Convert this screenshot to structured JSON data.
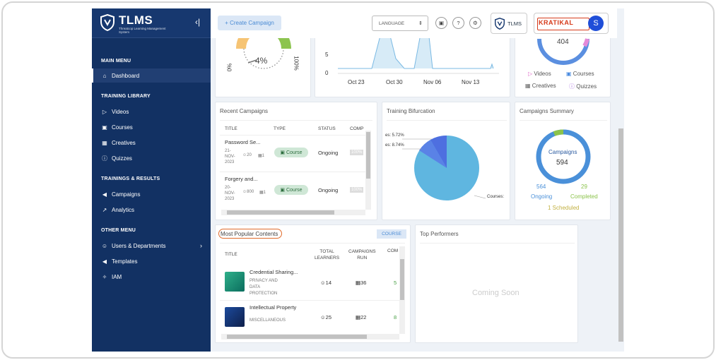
{
  "brand": {
    "name": "TLMS",
    "tagline": "Threatcop Learning Management System",
    "collapse_icon": "collapse-icon"
  },
  "sidebar": {
    "main_menu": "MAIN MENU",
    "dashboard": "Dashboard",
    "training_library": "TRAINING LIBRARY",
    "videos": "Videos",
    "courses": "Courses",
    "creatives": "Creatives",
    "quizzes": "Quizzes",
    "trainings_results": "TRAININGS & RESULTS",
    "campaigns": "Campaigns",
    "analytics": "Analytics",
    "other_menu": "OTHER MENU",
    "users_departments": "Users & Departments",
    "templates": "Templates",
    "iam": "IAM"
  },
  "topbar": {
    "create_campaign": "+ Create Campaign",
    "language": "LANGUAGE",
    "tlms": "TLMS",
    "org_logo": "KRATIKAL",
    "avatar": "S"
  },
  "gauge": {
    "value": "4%",
    "min": "0%",
    "max": "100%",
    "value_fraction": 0.04
  },
  "line_chart": {
    "y_ticks": [
      "5",
      "0"
    ],
    "x_ticks": [
      "Oct 23",
      "Oct 30",
      "Nov 06",
      "Nov 13"
    ]
  },
  "library_summary": {
    "total": "404",
    "videos": "Videos",
    "courses": "Courses",
    "creatives": "Creatives",
    "quizzes": "Quizzes"
  },
  "recent_campaigns": {
    "title": "Recent Campaigns",
    "headers": [
      "TITLE",
      "TYPE",
      "STATUS",
      "COMP"
    ],
    "rows": [
      {
        "name": "Password Se...",
        "date": "21-\nNOV-\n2023",
        "users": "20",
        "modules": "1",
        "type": "Course",
        "status": "Ongoing",
        "comp": "100%"
      },
      {
        "name": "Forgery and...",
        "date": "20-\nNOV-\n2023",
        "users": "800",
        "modules": "1",
        "type": "Course",
        "status": "Ongoing",
        "comp": "100%"
      }
    ]
  },
  "training_bifurcation": {
    "title": "Training Bifurcation",
    "labels": [
      "es: 5.72%",
      "es: 8.74%",
      "Courses:"
    ]
  },
  "campaigns_summary": {
    "title": "Campaigns Summary",
    "center_label": "Campaigns",
    "center_value": "594",
    "ongoing_value": "564",
    "ongoing_label": "Ongoing",
    "completed_value": "29",
    "completed_label": "Completed",
    "scheduled": "1 Scheduled"
  },
  "popular": {
    "title": "Most Popular Contents",
    "filter": "COURSE",
    "headers": {
      "title": "TITLE",
      "learners": "TOTAL\nLEARNERS",
      "runs": "CAMPAIGNS\nRUN",
      "comp": "COM"
    },
    "rows": [
      {
        "name": "Credential Sharing...",
        "cat": "PRIVACY AND\nDATA\nPROTECTION",
        "learners": "14",
        "runs": "36",
        "comp": "5"
      },
      {
        "name": "Intellectual Property",
        "cat": "MISCELLANEOUS",
        "learners": "25",
        "runs": "22",
        "comp": "8"
      }
    ]
  },
  "top_performers": {
    "title": "Top Performers",
    "placeholder": "Coming Soon"
  },
  "colors": {
    "sidebar": "#123163",
    "accent": "#4b8bd4",
    "ongoing": "#4a90d9",
    "completed": "#8bc34a",
    "pie": "#5fb6e0",
    "highlight": "#e06a2a"
  }
}
